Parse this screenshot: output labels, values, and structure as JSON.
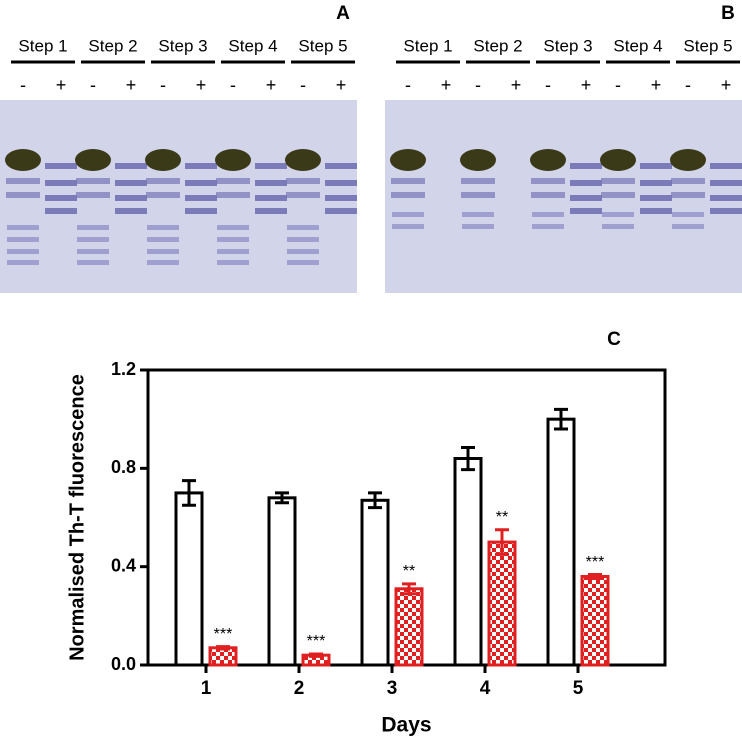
{
  "panels": [
    {
      "label": "A",
      "steps": [
        "Step 1",
        "Step 2",
        "Step 3",
        "Step 4",
        "Step 5"
      ],
      "lane_signs": [
        "-",
        "+",
        "-",
        "+",
        "-",
        "+",
        "-",
        "+",
        "-",
        "+"
      ]
    },
    {
      "label": "B",
      "steps": [
        "Step 1",
        "Step 2",
        "Step 3",
        "Step 4",
        "Step 5"
      ],
      "lane_signs": [
        "-",
        "+",
        "-",
        "+",
        "-",
        "+",
        "-",
        "+",
        "-",
        "+"
      ]
    }
  ],
  "chart_data": {
    "type": "bar",
    "label": "C",
    "ylabel": "Normalised Th-T fluorescence",
    "xlabel": "Days",
    "categories": [
      "1",
      "2",
      "3",
      "4",
      "5"
    ],
    "series": [
      {
        "color": "#ffffff",
        "values": [
          0.7,
          0.68,
          0.67,
          0.84,
          1.0
        ],
        "errors": [
          0.05,
          0.02,
          0.03,
          0.045,
          0.04
        ]
      },
      {
        "color": "#e02020",
        "values": [
          0.07,
          0.04,
          0.31,
          0.5,
          0.36
        ],
        "errors": [
          0.005,
          0.005,
          0.02,
          0.05,
          0.008
        ],
        "annotations": [
          "***",
          "***",
          "**",
          "**",
          "***"
        ]
      }
    ],
    "ylim": [
      0,
      1.2
    ],
    "yticks": [
      {
        "value": 0,
        "label": "0.0"
      },
      0.4,
      0.8,
      1.2
    ]
  }
}
